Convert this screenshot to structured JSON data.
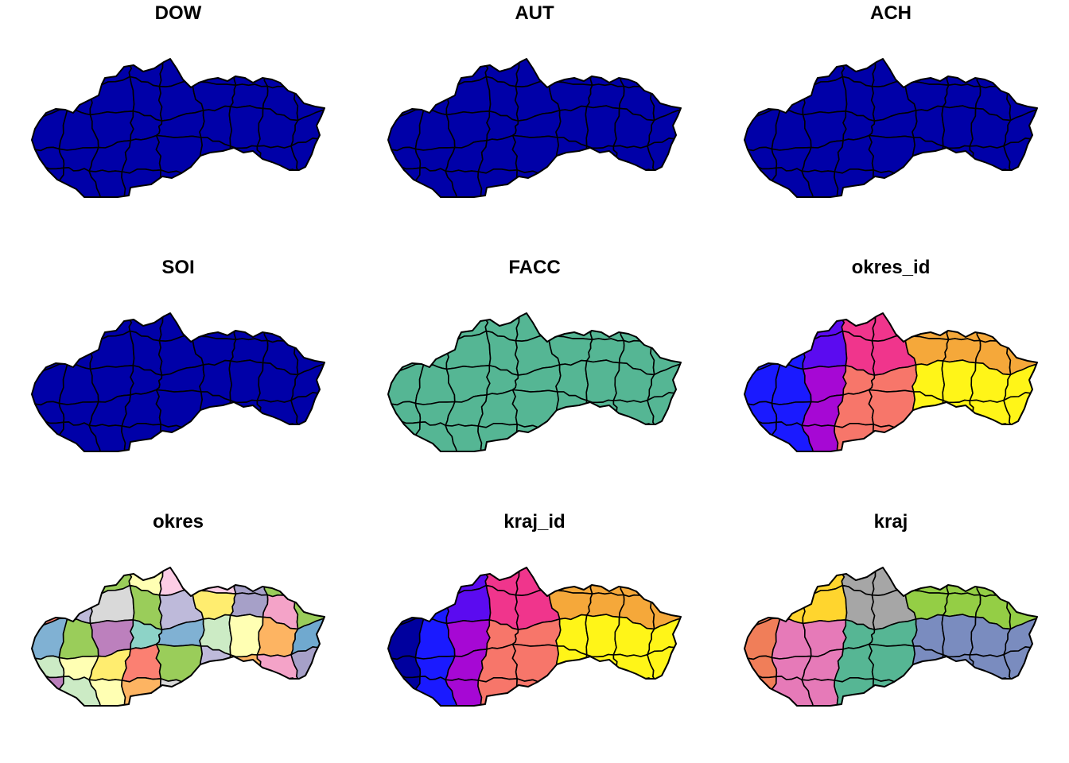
{
  "panels": [
    {
      "title": "DOW",
      "scheme": "single",
      "fill": "#0000A8"
    },
    {
      "title": "AUT",
      "scheme": "single",
      "fill": "#0000A8"
    },
    {
      "title": "ACH",
      "scheme": "single",
      "fill": "#0000A8"
    },
    {
      "title": "SOI",
      "scheme": "single",
      "fill": "#0000A8"
    },
    {
      "title": "FACC",
      "scheme": "single",
      "fill": "#55B694"
    },
    {
      "title": "okres_id",
      "scheme": "okres_id_gradient"
    },
    {
      "title": "okres",
      "scheme": "okres_pastel"
    },
    {
      "title": "kraj_id",
      "scheme": "kraj_id_gradient"
    },
    {
      "title": "kraj",
      "scheme": "kraj_qualitative"
    }
  ],
  "palettes": {
    "gradient": [
      "#00009E",
      "#1A1AFF",
      "#5B0BF0",
      "#A608D4",
      "#F0358C",
      "#F7766A",
      "#F5A83A",
      "#FFF518"
    ],
    "kraj_qualitative": [
      "#F07E59",
      "#D8B07E",
      "#E67AB8",
      "#FFD52E",
      "#A6A6A6",
      "#56B694",
      "#7A8CBF",
      "#94CE45"
    ],
    "okres_pastel": [
      "#8DD3C7",
      "#FFFFB3",
      "#BEBADA",
      "#FB8072",
      "#80B1D3",
      "#FDB462",
      "#B3DE69",
      "#FCCDE5",
      "#D9D9D9",
      "#BC80BD",
      "#CCEBC5",
      "#FFED6F",
      "#F4A3C8",
      "#70A9CF",
      "#A6A0C8",
      "#9ACD5A"
    ]
  }
}
